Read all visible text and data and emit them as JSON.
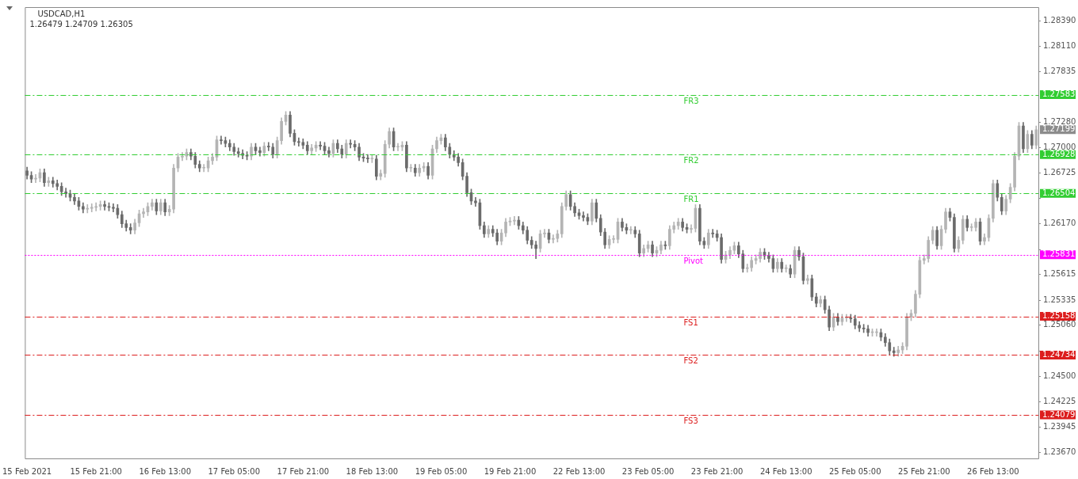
{
  "chart_data": {
    "type": "candlestick",
    "title": "USDCAD,H1",
    "subtitle": "1.26479 1.24709 1.26305",
    "categories": [
      "15 Feb 2021",
      null,
      null,
      null,
      null,
      null,
      null,
      null,
      null,
      null,
      null,
      null,
      null,
      null,
      null,
      null,
      "15 Feb 21:00",
      null,
      null,
      null,
      null,
      null,
      null,
      null,
      null,
      null,
      null,
      null,
      null,
      null,
      null,
      null,
      "16 Feb 13:00",
      null,
      null,
      null,
      null,
      null,
      null,
      null,
      null,
      null,
      null,
      null,
      null,
      null,
      null,
      null,
      "17 Feb 05:00",
      null,
      null,
      null,
      null,
      null,
      null,
      null,
      null,
      null,
      null,
      null,
      null,
      null,
      null,
      null,
      "17 Feb 21:00",
      null,
      null,
      null,
      null,
      null,
      null,
      null,
      null,
      null,
      null,
      null,
      null,
      null,
      null,
      null,
      "18 Feb 13:00",
      null,
      null,
      null,
      null,
      null,
      null,
      null,
      null,
      null,
      null,
      null,
      null,
      null,
      null,
      null,
      "19 Feb 05:00",
      null,
      null,
      null,
      null,
      null,
      null,
      null,
      null,
      null,
      null,
      null,
      null,
      null,
      null,
      null,
      "19 Feb 21:00",
      null,
      null,
      null,
      null,
      null,
      null,
      null,
      null,
      null,
      null,
      null,
      null,
      null,
      null,
      null,
      "22 Feb 13:00",
      null,
      null,
      null,
      null,
      null,
      null,
      null,
      null,
      null,
      null,
      null,
      null,
      null,
      null,
      null,
      "23 Feb 05:00",
      null,
      null,
      null,
      null,
      null,
      null,
      null,
      null,
      null,
      null,
      null,
      null,
      null,
      null,
      null,
      "23 Feb 21:00",
      null,
      null,
      null,
      null,
      null,
      null,
      null,
      null,
      null,
      null,
      null,
      null,
      null,
      null,
      null,
      "24 Feb 13:00",
      null,
      null,
      null,
      null,
      null,
      null,
      null,
      null,
      null,
      null,
      null,
      null,
      null,
      null,
      null,
      "25 Feb 05:00",
      null,
      null,
      null,
      null,
      null,
      null,
      null,
      null,
      null,
      null,
      null,
      null,
      null,
      null,
      null,
      "25 Feb 21:00",
      null,
      null,
      null,
      null,
      null,
      null,
      null,
      null,
      null,
      null,
      null,
      null,
      null,
      null,
      null,
      "26 Feb 13:00",
      null,
      null,
      null,
      null,
      null,
      null,
      null,
      null,
      null,
      null
    ],
    "ohlc": [
      [
        1.2675,
        1.2679,
        1.2666,
        1.267
      ],
      [
        1.267,
        1.2674,
        1.2662,
        1.2666
      ],
      [
        1.2666,
        1.2671,
        1.2662,
        1.2667
      ],
      [
        1.2667,
        1.2677,
        1.2663,
        1.2673
      ],
      [
        1.2673,
        1.2677,
        1.2658,
        1.2662
      ],
      [
        1.2662,
        1.2668,
        1.2658,
        1.2664
      ],
      [
        1.2664,
        1.2668,
        1.2657,
        1.2661
      ],
      [
        1.2661,
        1.2665,
        1.2654,
        1.2658
      ],
      [
        1.2658,
        1.2662,
        1.2648,
        1.2652
      ],
      [
        1.2652,
        1.2656,
        1.2646,
        1.265
      ],
      [
        1.265,
        1.2654,
        1.2642,
        1.2646
      ],
      [
        1.2646,
        1.265,
        1.2638,
        1.2642
      ],
      [
        1.2642,
        1.2646,
        1.2632,
        1.2636
      ],
      [
        1.2636,
        1.264,
        1.2629,
        1.2633
      ],
      [
        1.2633,
        1.2638,
        1.2629,
        1.2634
      ],
      [
        1.2634,
        1.2639,
        1.263,
        1.2635
      ],
      [
        1.2635,
        1.264,
        1.2631,
        1.2636
      ],
      [
        1.2636,
        1.2642,
        1.2632,
        1.2638
      ],
      [
        1.2638,
        1.2642,
        1.2632,
        1.2636
      ],
      [
        1.2636,
        1.264,
        1.2631,
        1.2635
      ],
      [
        1.2635,
        1.2639,
        1.263,
        1.2634
      ],
      [
        1.2634,
        1.2638,
        1.2623,
        1.2627
      ],
      [
        1.2627,
        1.2631,
        1.2613,
        1.2617
      ],
      [
        1.2617,
        1.2621,
        1.2609,
        1.2613
      ],
      [
        1.2613,
        1.2617,
        1.2606,
        1.261
      ],
      [
        1.261,
        1.2622,
        1.2606,
        1.2618
      ],
      [
        1.2618,
        1.2632,
        1.2614,
        1.2628
      ],
      [
        1.2628,
        1.2634,
        1.2624,
        1.263
      ],
      [
        1.263,
        1.264,
        1.2626,
        1.2636
      ],
      [
        1.2636,
        1.2644,
        1.2632,
        1.264
      ],
      [
        1.264,
        1.2644,
        1.2627,
        1.2631
      ],
      [
        1.2631,
        1.2644,
        1.2627,
        1.264
      ],
      [
        1.264,
        1.2644,
        1.2626,
        1.263
      ],
      [
        1.263,
        1.2637,
        1.2626,
        1.2633
      ],
      [
        1.2633,
        1.2682,
        1.2629,
        1.2678
      ],
      [
        1.2678,
        1.2694,
        1.2674,
        1.269
      ],
      [
        1.269,
        1.2695,
        1.2686,
        1.2691
      ],
      [
        1.2691,
        1.2699,
        1.2687,
        1.2695
      ],
      [
        1.2695,
        1.2699,
        1.2687,
        1.2691
      ],
      [
        1.2691,
        1.2695,
        1.2678,
        1.2682
      ],
      [
        1.2682,
        1.2686,
        1.2674,
        1.2678
      ],
      [
        1.2678,
        1.2682,
        1.2674,
        1.2678
      ],
      [
        1.2678,
        1.269,
        1.2674,
        1.2686
      ],
      [
        1.2686,
        1.2694,
        1.2682,
        1.269
      ],
      [
        1.269,
        1.2713,
        1.2686,
        1.2709
      ],
      [
        1.2709,
        1.2713,
        1.2704,
        1.2708
      ],
      [
        1.2708,
        1.2712,
        1.2701,
        1.2705
      ],
      [
        1.2705,
        1.2709,
        1.2697,
        1.2701
      ],
      [
        1.2701,
        1.2705,
        1.2692,
        1.2696
      ],
      [
        1.2696,
        1.27,
        1.269,
        1.2694
      ],
      [
        1.2694,
        1.2698,
        1.2688,
        1.2692
      ],
      [
        1.2692,
        1.2696,
        1.2687,
        1.2691
      ],
      [
        1.2691,
        1.2705,
        1.2687,
        1.2701
      ],
      [
        1.2701,
        1.2705,
        1.2693,
        1.2697
      ],
      [
        1.2697,
        1.2701,
        1.2691,
        1.2695
      ],
      [
        1.2695,
        1.2706,
        1.2691,
        1.2702
      ],
      [
        1.2702,
        1.2706,
        1.2697,
        1.2701
      ],
      [
        1.2701,
        1.2705,
        1.2689,
        1.2693
      ],
      [
        1.2693,
        1.2712,
        1.2689,
        1.2708
      ],
      [
        1.2708,
        1.2733,
        1.2704,
        1.2729
      ],
      [
        1.2729,
        1.274,
        1.2725,
        1.2736
      ],
      [
        1.2736,
        1.274,
        1.2712,
        1.2716
      ],
      [
        1.2716,
        1.272,
        1.2703,
        1.2707
      ],
      [
        1.2707,
        1.2711,
        1.2702,
        1.2706
      ],
      [
        1.2706,
        1.271,
        1.2699,
        1.2703
      ],
      [
        1.2703,
        1.2707,
        1.2693,
        1.2697
      ],
      [
        1.2697,
        1.2704,
        1.2693,
        1.27
      ],
      [
        1.27,
        1.2707,
        1.2696,
        1.2703
      ],
      [
        1.2703,
        1.2707,
        1.2698,
        1.2702
      ],
      [
        1.2702,
        1.2706,
        1.2693,
        1.2697
      ],
      [
        1.2697,
        1.2701,
        1.269,
        1.2694
      ],
      [
        1.2694,
        1.2709,
        1.269,
        1.2705
      ],
      [
        1.2705,
        1.2709,
        1.2695,
        1.2699
      ],
      [
        1.2699,
        1.2703,
        1.2689,
        1.2693
      ],
      [
        1.2693,
        1.2709,
        1.2689,
        1.2705
      ],
      [
        1.2705,
        1.2709,
        1.27,
        1.2704
      ],
      [
        1.2704,
        1.2708,
        1.2697,
        1.2701
      ],
      [
        1.2701,
        1.2705,
        1.2686,
        1.269
      ],
      [
        1.269,
        1.2694,
        1.2685,
        1.2689
      ],
      [
        1.2689,
        1.2693,
        1.2684,
        1.2688
      ],
      [
        1.2688,
        1.2692,
        1.2684,
        1.2688
      ],
      [
        1.2688,
        1.2692,
        1.2665,
        1.2669
      ],
      [
        1.2669,
        1.2676,
        1.2665,
        1.2672
      ],
      [
        1.2672,
        1.2708,
        1.2668,
        1.2704
      ],
      [
        1.2704,
        1.2722,
        1.27,
        1.2718
      ],
      [
        1.2718,
        1.2722,
        1.2697,
        1.2701
      ],
      [
        1.2701,
        1.2705,
        1.2697,
        1.2701
      ],
      [
        1.2701,
        1.2707,
        1.2697,
        1.2703
      ],
      [
        1.2703,
        1.2707,
        1.2674,
        1.2678
      ],
      [
        1.2678,
        1.2682,
        1.2674,
        1.2678
      ],
      [
        1.2678,
        1.2682,
        1.2669,
        1.2673
      ],
      [
        1.2673,
        1.2682,
        1.2669,
        1.2678
      ],
      [
        1.2678,
        1.2684,
        1.2674,
        1.268
      ],
      [
        1.268,
        1.2684,
        1.2666,
        1.267
      ],
      [
        1.267,
        1.2703,
        1.2666,
        1.2699
      ],
      [
        1.2699,
        1.2712,
        1.2695,
        1.2708
      ],
      [
        1.2708,
        1.2715,
        1.2704,
        1.2711
      ],
      [
        1.2711,
        1.2715,
        1.2697,
        1.2701
      ],
      [
        1.2701,
        1.2705,
        1.2689,
        1.2693
      ],
      [
        1.2693,
        1.2697,
        1.2686,
        1.269
      ],
      [
        1.269,
        1.2694,
        1.268,
        1.2684
      ],
      [
        1.2684,
        1.2688,
        1.2665,
        1.2669
      ],
      [
        1.2669,
        1.2673,
        1.2647,
        1.2651
      ],
      [
        1.2651,
        1.2655,
        1.2638,
        1.2642
      ],
      [
        1.2642,
        1.2646,
        1.2636,
        1.264
      ],
      [
        1.264,
        1.2644,
        1.2611,
        1.2615
      ],
      [
        1.2615,
        1.2619,
        1.2602,
        1.2606
      ],
      [
        1.2606,
        1.2615,
        1.2602,
        1.2611
      ],
      [
        1.2611,
        1.2615,
        1.2603,
        1.2607
      ],
      [
        1.2607,
        1.2611,
        1.2594,
        1.2598
      ],
      [
        1.2598,
        1.2611,
        1.2594,
        1.2607
      ],
      [
        1.2607,
        1.2623,
        1.2603,
        1.2619
      ],
      [
        1.2619,
        1.2624,
        1.2615,
        1.262
      ],
      [
        1.262,
        1.2625,
        1.2616,
        1.2621
      ],
      [
        1.2621,
        1.2625,
        1.2611,
        1.2615
      ],
      [
        1.2615,
        1.2619,
        1.2606,
        1.261
      ],
      [
        1.261,
        1.2614,
        1.2595,
        1.2599
      ],
      [
        1.2599,
        1.2603,
        1.259,
        1.2594
      ],
      [
        1.2594,
        1.2598,
        1.2579,
        1.259
      ],
      [
        1.259,
        1.261,
        1.2586,
        1.2606
      ],
      [
        1.2606,
        1.2611,
        1.2602,
        1.2607
      ],
      [
        1.2607,
        1.2611,
        1.2596,
        1.26
      ],
      [
        1.26,
        1.2605,
        1.2596,
        1.2601
      ],
      [
        1.2601,
        1.261,
        1.2597,
        1.2606
      ],
      [
        1.2606,
        1.264,
        1.2602,
        1.2636
      ],
      [
        1.2636,
        1.2653,
        1.2632,
        1.2649
      ],
      [
        1.2649,
        1.2653,
        1.2632,
        1.2636
      ],
      [
        1.2636,
        1.264,
        1.2625,
        1.2629
      ],
      [
        1.2629,
        1.2633,
        1.2622,
        1.2626
      ],
      [
        1.2626,
        1.263,
        1.262,
        1.2624
      ],
      [
        1.2624,
        1.2628,
        1.2616,
        1.262
      ],
      [
        1.262,
        1.2644,
        1.2616,
        1.264
      ],
      [
        1.264,
        1.2644,
        1.2619,
        1.2623
      ],
      [
        1.2623,
        1.2627,
        1.2604,
        1.2608
      ],
      [
        1.2608,
        1.2612,
        1.259,
        1.2594
      ],
      [
        1.2594,
        1.2604,
        1.259,
        1.26
      ],
      [
        1.26,
        1.2604,
        1.2596,
        1.26
      ],
      [
        1.26,
        1.2623,
        1.2596,
        1.2619
      ],
      [
        1.2619,
        1.2623,
        1.2609,
        1.2613
      ],
      [
        1.2613,
        1.2617,
        1.2606,
        1.261
      ],
      [
        1.261,
        1.2614,
        1.2606,
        1.261
      ],
      [
        1.261,
        1.2614,
        1.2602,
        1.2606
      ],
      [
        1.2606,
        1.261,
        1.2581,
        1.2585
      ],
      [
        1.2585,
        1.2594,
        1.2581,
        1.259
      ],
      [
        1.259,
        1.2598,
        1.2586,
        1.2594
      ],
      [
        1.2594,
        1.2598,
        1.2581,
        1.2585
      ],
      [
        1.2585,
        1.2592,
        1.2581,
        1.2588
      ],
      [
        1.2588,
        1.2598,
        1.2584,
        1.2594
      ],
      [
        1.2594,
        1.2598,
        1.2589,
        1.2593
      ],
      [
        1.2593,
        1.2615,
        1.2589,
        1.2611
      ],
      [
        1.2611,
        1.2619,
        1.2607,
        1.2615
      ],
      [
        1.2615,
        1.2623,
        1.2611,
        1.2619
      ],
      [
        1.2619,
        1.2623,
        1.2609,
        1.2613
      ],
      [
        1.2613,
        1.2617,
        1.2607,
        1.2611
      ],
      [
        1.2611,
        1.2616,
        1.2607,
        1.2612
      ],
      [
        1.2612,
        1.2638,
        1.2608,
        1.2634
      ],
      [
        1.2634,
        1.2638,
        1.2594,
        1.2598
      ],
      [
        1.2598,
        1.2602,
        1.259,
        1.2594
      ],
      [
        1.2594,
        1.2611,
        1.259,
        1.2607
      ],
      [
        1.2607,
        1.2611,
        1.2602,
        1.2606
      ],
      [
        1.2606,
        1.261,
        1.2598,
        1.2602
      ],
      [
        1.2602,
        1.2606,
        1.2574,
        1.2578
      ],
      [
        1.2578,
        1.2587,
        1.2574,
        1.2583
      ],
      [
        1.2583,
        1.2592,
        1.2579,
        1.2588
      ],
      [
        1.2588,
        1.2597,
        1.2584,
        1.2593
      ],
      [
        1.2593,
        1.2597,
        1.258,
        1.2584
      ],
      [
        1.2584,
        1.2588,
        1.2564,
        1.2568
      ],
      [
        1.2568,
        1.2573,
        1.2564,
        1.2569
      ],
      [
        1.2569,
        1.2581,
        1.2565,
        1.2577
      ],
      [
        1.2577,
        1.2583,
        1.2573,
        1.2579
      ],
      [
        1.2579,
        1.259,
        1.2575,
        1.2586
      ],
      [
        1.2586,
        1.259,
        1.2578,
        1.2582
      ],
      [
        1.2582,
        1.2586,
        1.2575,
        1.2579
      ],
      [
        1.2579,
        1.2583,
        1.2564,
        1.2568
      ],
      [
        1.2568,
        1.2579,
        1.2564,
        1.2575
      ],
      [
        1.2575,
        1.2579,
        1.2564,
        1.2568
      ],
      [
        1.2568,
        1.2572,
        1.2564,
        1.2568
      ],
      [
        1.2568,
        1.2572,
        1.2558,
        1.2562
      ],
      [
        1.2562,
        1.2592,
        1.2558,
        1.2588
      ],
      [
        1.2588,
        1.2592,
        1.2577,
        1.2581
      ],
      [
        1.2581,
        1.2585,
        1.2551,
        1.2555
      ],
      [
        1.2555,
        1.2561,
        1.2551,
        1.2557
      ],
      [
        1.2557,
        1.2561,
        1.2533,
        1.2537
      ],
      [
        1.2537,
        1.2541,
        1.2526,
        1.253
      ],
      [
        1.253,
        1.2538,
        1.2526,
        1.2534
      ],
      [
        1.2534,
        1.2538,
        1.2519,
        1.2523
      ],
      [
        1.2523,
        1.2527,
        1.25,
        1.2504
      ],
      [
        1.2504,
        1.2519,
        1.25,
        1.2515
      ],
      [
        1.2515,
        1.2519,
        1.2506,
        1.251
      ],
      [
        1.251,
        1.2518,
        1.2506,
        1.2514
      ],
      [
        1.2514,
        1.2518,
        1.251,
        1.2514
      ],
      [
        1.2514,
        1.2518,
        1.2509,
        1.2513
      ],
      [
        1.2513,
        1.2517,
        1.2502,
        1.2506
      ],
      [
        1.2506,
        1.251,
        1.2499,
        1.2503
      ],
      [
        1.2503,
        1.2507,
        1.2498,
        1.2502
      ],
      [
        1.2502,
        1.2506,
        1.2494,
        1.2498
      ],
      [
        1.2498,
        1.2502,
        1.2494,
        1.2498
      ],
      [
        1.2498,
        1.2502,
        1.2494,
        1.2498
      ],
      [
        1.2498,
        1.2502,
        1.2489,
        1.2493
      ],
      [
        1.2493,
        1.2497,
        1.2483,
        1.2487
      ],
      [
        1.2487,
        1.2491,
        1.2474,
        1.2478
      ],
      [
        1.2478,
        1.2482,
        1.2472,
        1.2476
      ],
      [
        1.2476,
        1.2483,
        1.2472,
        1.2479
      ],
      [
        1.2479,
        1.2487,
        1.2475,
        1.2483
      ],
      [
        1.2483,
        1.2519,
        1.2479,
        1.2515
      ],
      [
        1.2515,
        1.2523,
        1.2511,
        1.2519
      ],
      [
        1.2519,
        1.2544,
        1.2515,
        1.254
      ],
      [
        1.254,
        1.2581,
        1.2536,
        1.2577
      ],
      [
        1.2577,
        1.2583,
        1.2573,
        1.2579
      ],
      [
        1.2579,
        1.2603,
        1.2575,
        1.2599
      ],
      [
        1.2599,
        1.2614,
        1.2595,
        1.261
      ],
      [
        1.261,
        1.2614,
        1.2589,
        1.2593
      ],
      [
        1.2593,
        1.2615,
        1.2589,
        1.2611
      ],
      [
        1.2611,
        1.2634,
        1.2607,
        1.263
      ],
      [
        1.263,
        1.2634,
        1.262,
        1.2624
      ],
      [
        1.2624,
        1.2628,
        1.2586,
        1.259
      ],
      [
        1.259,
        1.2603,
        1.2586,
        1.2599
      ],
      [
        1.2599,
        1.2626,
        1.2595,
        1.2622
      ],
      [
        1.2622,
        1.2626,
        1.2609,
        1.2613
      ],
      [
        1.2613,
        1.2617,
        1.2609,
        1.2613
      ],
      [
        1.2613,
        1.2623,
        1.2609,
        1.2619
      ],
      [
        1.2619,
        1.2623,
        1.2594,
        1.2598
      ],
      [
        1.2598,
        1.2606,
        1.2594,
        1.2602
      ],
      [
        1.2602,
        1.2627,
        1.2598,
        1.2623
      ],
      [
        1.2623,
        1.2665,
        1.2619,
        1.2661
      ],
      [
        1.2661,
        1.2665,
        1.2642,
        1.2646
      ],
      [
        1.2646,
        1.265,
        1.2627,
        1.2631
      ],
      [
        1.2631,
        1.2648,
        1.2627,
        1.2644
      ],
      [
        1.2644,
        1.2661,
        1.264,
        1.2657
      ],
      [
        1.2657,
        1.2695,
        1.2653,
        1.2691
      ],
      [
        1.2691,
        1.2728,
        1.2687,
        1.2724
      ],
      [
        1.2724,
        1.2728,
        1.2695,
        1.2699
      ],
      [
        1.2699,
        1.2719,
        1.2695,
        1.2715
      ],
      [
        1.2715,
        1.2719,
        1.2699,
        1.2703
      ],
      [
        1.2703,
        1.2724,
        1.2699,
        1.272
      ]
    ],
    "colors": [
      "#6b6b6b",
      "#6b6b6b",
      "#b4b4b4",
      "#b4b4b4",
      "#6b6b6b",
      "#b4b4b4",
      "#6b6b6b",
      "#6b6b6b",
      "#6b6b6b",
      "#6b6b6b",
      "#6b6b6b",
      "#6b6b6b",
      "#6b6b6b",
      "#6b6b6b",
      "#b4b4b4",
      "#b4b4b4",
      "#b4b4b4",
      "#b4b4b4",
      "#6b6b6b",
      "#6b6b6b",
      "#6b6b6b",
      "#6b6b6b",
      "#6b6b6b",
      "#6b6b6b",
      "#6b6b6b",
      "#b4b4b4",
      "#b4b4b4",
      "#b4b4b4",
      "#b4b4b4",
      "#b4b4b4",
      "#6b6b6b",
      "#b4b4b4",
      "#6b6b6b",
      "#b4b4b4",
      "#b4b4b4",
      "#b4b4b4",
      "#b4b4b4",
      "#b4b4b4",
      "#6b6b6b",
      "#6b6b6b",
      "#6b6b6b",
      "#b4b4b4",
      "#b4b4b4",
      "#b4b4b4",
      "#b4b4b4",
      "#6b6b6b",
      "#6b6b6b",
      "#6b6b6b",
      "#6b6b6b",
      "#6b6b6b",
      "#6b6b6b",
      "#6b6b6b",
      "#b4b4b4",
      "#6b6b6b",
      "#6b6b6b",
      "#b4b4b4",
      "#6b6b6b",
      "#6b6b6b",
      "#b4b4b4",
      "#b4b4b4",
      "#b4b4b4",
      "#6b6b6b",
      "#6b6b6b",
      "#6b6b6b",
      "#6b6b6b",
      "#6b6b6b",
      "#b4b4b4",
      "#b4b4b4",
      "#6b6b6b",
      "#6b6b6b",
      "#6b6b6b",
      "#b4b4b4",
      "#6b6b6b",
      "#6b6b6b",
      "#b4b4b4",
      "#6b6b6b",
      "#6b6b6b",
      "#6b6b6b",
      "#6b6b6b",
      "#6b6b6b",
      "#b4b4b4",
      "#6b6b6b",
      "#b4b4b4",
      "#b4b4b4",
      "#b4b4b4",
      "#6b6b6b",
      "#b4b4b4",
      "#b4b4b4",
      "#6b6b6b",
      "#b4b4b4",
      "#6b6b6b",
      "#b4b4b4",
      "#b4b4b4",
      "#6b6b6b",
      "#b4b4b4",
      "#b4b4b4",
      "#b4b4b4",
      "#6b6b6b",
      "#6b6b6b",
      "#6b6b6b",
      "#6b6b6b",
      "#6b6b6b",
      "#6b6b6b",
      "#6b6b6b",
      "#6b6b6b",
      "#6b6b6b",
      "#6b6b6b",
      "#b4b4b4",
      "#6b6b6b",
      "#6b6b6b",
      "#b4b4b4",
      "#b4b4b4",
      "#b4b4b4",
      "#b4b4b4",
      "#6b6b6b",
      "#6b6b6b",
      "#6b6b6b",
      "#6b6b6b",
      "#6b6b6b",
      "#b4b4b4",
      "#b4b4b4",
      "#6b6b6b",
      "#b4b4b4",
      "#b4b4b4",
      "#b4b4b4",
      "#b4b4b4",
      "#6b6b6b",
      "#6b6b6b",
      "#6b6b6b",
      "#6b6b6b",
      "#6b6b6b",
      "#b4b4b4",
      "#6b6b6b",
      "#6b6b6b",
      "#6b6b6b",
      "#b4b4b4",
      "#b4b4b4",
      "#b4b4b4",
      "#6b6b6b",
      "#6b6b6b",
      "#b4b4b4",
      "#6b6b6b",
      "#6b6b6b",
      "#b4b4b4",
      "#b4b4b4",
      "#6b6b6b",
      "#b4b4b4",
      "#b4b4b4",
      "#6b6b6b",
      "#b4b4b4",
      "#b4b4b4",
      "#b4b4b4",
      "#6b6b6b",
      "#6b6b6b",
      "#b4b4b4",
      "#b4b4b4",
      "#6b6b6b",
      "#6b6b6b",
      "#b4b4b4",
      "#6b6b6b",
      "#6b6b6b",
      "#6b6b6b",
      "#b4b4b4",
      "#b4b4b4",
      "#b4b4b4",
      "#6b6b6b",
      "#6b6b6b",
      "#b4b4b4",
      "#b4b4b4",
      "#b4b4b4",
      "#b4b4b4",
      "#6b6b6b",
      "#6b6b6b",
      "#6b6b6b",
      "#b4b4b4",
      "#6b6b6b",
      "#b4b4b4",
      "#6b6b6b",
      "#b4b4b4",
      "#6b6b6b",
      "#6b6b6b",
      "#b4b4b4",
      "#6b6b6b",
      "#6b6b6b",
      "#b4b4b4",
      "#6b6b6b",
      "#6b6b6b",
      "#b4b4b4",
      "#6b6b6b",
      "#b4b4b4",
      "#b4b4b4",
      "#6b6b6b",
      "#6b6b6b",
      "#6b6b6b",
      "#6b6b6b",
      "#6b6b6b",
      "#b4b4b4",
      "#b4b4b4",
      "#6b6b6b",
      "#6b6b6b",
      "#6b6b6b",
      "#6b6b6b",
      "#b4b4b4",
      "#b4b4b4",
      "#b4b4b4",
      "#b4b4b4",
      "#b4b4b4",
      "#b4b4b4",
      "#b4b4b4",
      "#b4b4b4",
      "#b4b4b4",
      "#6b6b6b",
      "#b4b4b4",
      "#b4b4b4",
      "#6b6b6b",
      "#6b6b6b",
      "#b4b4b4",
      "#b4b4b4",
      "#6b6b6b",
      "#b4b4b4",
      "#b4b4b4",
      "#6b6b6b",
      "#b4b4b4",
      "#b4b4b4",
      "#b4b4b4",
      "#6b6b6b",
      "#6b6b6b",
      "#b4b4b4",
      "#b4b4b4",
      "#b4b4b4",
      "#b4b4b4",
      "#6b6b6b",
      "#b4b4b4",
      "#6b6b6b",
      "#b4b4b4"
    ],
    "ylim": [
      1.23603,
      1.28541
    ],
    "yticks": [
      {
        "value": 1.2839,
        "label": "1.28390"
      },
      {
        "value": 1.2811,
        "label": "1.28110"
      },
      1.27835,
      {
        "value": 1.2728,
        "label": "1.27280"
      },
      {
        "value": 1.27,
        "label": "1.27000"
      },
      1.26725,
      {
        "value": 1.26445,
        "label": null
      },
      {
        "value": 1.2617,
        "label": "1.26170"
      },
      {
        "value": 1.2589,
        "label": null
      },
      1.25615,
      1.25335,
      {
        "value": 1.2506,
        "label": "1.25060"
      },
      {
        "value": 1.2478,
        "label": null
      },
      {
        "value": 1.245,
        "label": "1.24500"
      },
      1.24225,
      1.23945,
      {
        "value": 1.2367,
        "label": "1.23670"
      }
    ],
    "ref_lines": [
      {
        "axis": "y",
        "value": 1.27583,
        "label": "FR3",
        "color": "#32cd32",
        "line_style": "dashed"
      },
      {
        "axis": "y",
        "value": 1.26928,
        "label": "FR2",
        "color": "#32cd32",
        "line_style": "dashed"
      },
      {
        "axis": "y",
        "value": 1.26504,
        "label": "FR1",
        "color": "#32cd32",
        "line_style": "dashed"
      },
      {
        "axis": "y",
        "value": 1.25831,
        "label": "Pivot",
        "color": "#ff00ff",
        "line_style": "dotted"
      },
      {
        "axis": "y",
        "value": 1.25158,
        "label": "FS1",
        "color": "#dc1e1e",
        "line_style": "dashed"
      },
      {
        "axis": "y",
        "value": 1.24734,
        "label": "FS2",
        "color": "#dc1e1e",
        "line_style": "dashed"
      },
      {
        "axis": "y",
        "value": 1.24079,
        "label": "FS3",
        "color": "#dc1e1e",
        "line_style": "dashed"
      }
    ],
    "annotations": [
      "1.27583",
      "1.26928",
      "1.26504",
      "1.25831",
      "1.25158",
      "1.24734",
      "1.24079",
      "1.27199"
    ]
  }
}
